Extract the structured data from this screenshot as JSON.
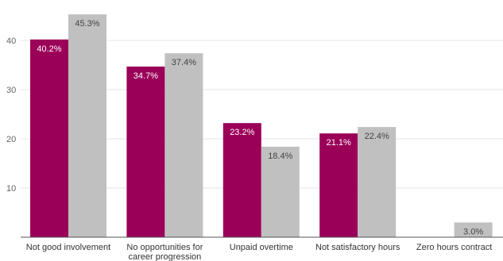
{
  "chart_data": {
    "type": "bar",
    "categories": [
      [
        "Not good involvement"
      ],
      [
        "No opportunities for",
        "career progression"
      ],
      [
        "Unpaid overtime"
      ],
      [
        "Not satisfactory hours"
      ],
      [
        "Zero hours contract"
      ]
    ],
    "series": [
      {
        "color": "#9b0058",
        "label_color": "#ffffff",
        "values": [
          40.2,
          34.7,
          23.2,
          21.1,
          null
        ],
        "labels": [
          "40.2%",
          "34.7%",
          "23.2%",
          "21.1%",
          ""
        ]
      },
      {
        "color": "#c0c0c0",
        "label_color": "#444444",
        "values": [
          45.3,
          37.4,
          18.4,
          22.4,
          3.0
        ],
        "labels": [
          "45.3%",
          "37.4%",
          "18.4%",
          "22.4%",
          "3.0%"
        ]
      }
    ],
    "yticks": [
      10,
      20,
      30,
      40
    ],
    "ylim": [
      0,
      46
    ],
    "grid": true,
    "legend": "none"
  }
}
